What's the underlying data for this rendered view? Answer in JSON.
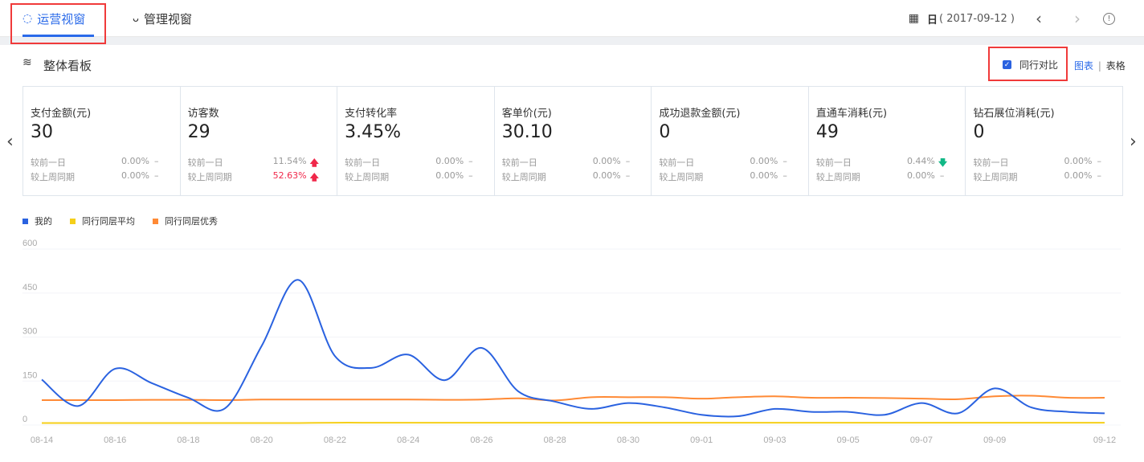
{
  "tabs": [
    {
      "label": "运营视窗",
      "icon": "cycle-icon",
      "active": true
    },
    {
      "label": "管理视窗",
      "icon": "medal-icon",
      "active": false
    }
  ],
  "date": {
    "icon": "calendar-icon",
    "period": "日",
    "value": "( 2017-09-12 )"
  },
  "section": {
    "title": "整体看板",
    "icon": "layers-icon",
    "peer_compare": {
      "label": "同行对比",
      "checked": true
    },
    "view_chart": "图表",
    "view_sep": "|",
    "view_table": "表格"
  },
  "colors": {
    "accent": "#2a6ae9",
    "up": "#f0284a",
    "down": "#12b886",
    "mine": "#2a62e0",
    "avg": "#f5cf1a",
    "best": "#ff8a35"
  },
  "cards": [
    {
      "title": "支付金额(元)",
      "value": "30",
      "rows": [
        {
          "label": "较前一日",
          "pct": "0.00%",
          "trend": "flat"
        },
        {
          "label": "较上周同期",
          "pct": "0.00%",
          "trend": "flat"
        }
      ]
    },
    {
      "title": "访客数",
      "value": "29",
      "rows": [
        {
          "label": "较前一日",
          "pct": "11.54%",
          "trend": "up"
        },
        {
          "label": "较上周同期",
          "pct": "52.63%",
          "trend": "up",
          "highlight": true
        }
      ]
    },
    {
      "title": "支付转化率",
      "value": "3.45%",
      "rows": [
        {
          "label": "较前一日",
          "pct": "0.00%",
          "trend": "flat"
        },
        {
          "label": "较上周同期",
          "pct": "0.00%",
          "trend": "flat"
        }
      ]
    },
    {
      "title": "客单价(元)",
      "value": "30.10",
      "rows": [
        {
          "label": "较前一日",
          "pct": "0.00%",
          "trend": "flat"
        },
        {
          "label": "较上周同期",
          "pct": "0.00%",
          "trend": "flat"
        }
      ]
    },
    {
      "title": "成功退款金额(元)",
      "value": "0",
      "rows": [
        {
          "label": "较前一日",
          "pct": "0.00%",
          "trend": "flat"
        },
        {
          "label": "较上周同期",
          "pct": "0.00%",
          "trend": "flat"
        }
      ]
    },
    {
      "title": "直通车消耗(元)",
      "value": "49",
      "rows": [
        {
          "label": "较前一日",
          "pct": "0.44%",
          "trend": "down"
        },
        {
          "label": "较上周同期",
          "pct": "0.00%",
          "trend": "flat"
        }
      ]
    },
    {
      "title": "钻石展位消耗(元)",
      "value": "0",
      "rows": [
        {
          "label": "较前一日",
          "pct": "0.00%",
          "trend": "flat"
        },
        {
          "label": "较上周同期",
          "pct": "0.00%",
          "trend": "flat"
        }
      ]
    }
  ],
  "chart_data": {
    "type": "line",
    "ylim": [
      0,
      600
    ],
    "yticks": [
      0,
      150,
      300,
      450,
      600
    ],
    "grid": true,
    "legend_position": "top-left",
    "smooth": true,
    "x": [
      "08-14",
      "08-15",
      "08-16",
      "08-17",
      "08-18",
      "08-19",
      "08-20",
      "08-21",
      "08-22",
      "08-23",
      "08-24",
      "08-25",
      "08-26",
      "08-27",
      "08-28",
      "08-29",
      "08-30",
      "08-31",
      "09-01",
      "09-02",
      "09-03",
      "09-04",
      "09-05",
      "09-06",
      "09-07",
      "09-08",
      "09-09",
      "09-10",
      "09-11",
      "09-12"
    ],
    "xtick_labels": [
      "08-14",
      "08-16",
      "08-18",
      "08-20",
      "08-22",
      "08-24",
      "08-26",
      "08-28",
      "08-30",
      "09-01",
      "09-03",
      "09-05",
      "09-07",
      "09-09",
      "09-12"
    ],
    "series": [
      {
        "name": "我的",
        "color": "#2a62e0",
        "values": [
          155,
          65,
          192,
          143,
          93,
          57,
          270,
          495,
          235,
          195,
          240,
          153,
          263,
          115,
          80,
          55,
          75,
          60,
          35,
          30,
          55,
          45,
          45,
          35,
          75,
          40,
          125,
          60,
          45,
          40
        ]
      },
      {
        "name": "同行同层平均",
        "color": "#f5cf1a",
        "values": [
          7,
          7,
          7,
          7,
          7,
          7,
          7,
          7,
          8,
          8,
          8,
          8,
          8,
          8,
          8,
          8,
          8,
          8,
          8,
          8,
          8,
          8,
          8,
          8,
          8,
          8,
          8,
          8,
          8,
          8
        ]
      },
      {
        "name": "同行同层优秀",
        "color": "#ff8a35",
        "values": [
          85,
          85,
          85,
          86,
          86,
          85,
          87,
          87,
          87,
          87,
          87,
          86,
          87,
          91,
          84,
          95,
          95,
          95,
          90,
          95,
          98,
          93,
          93,
          92,
          90,
          88,
          98,
          100,
          93,
          93
        ]
      }
    ]
  }
}
